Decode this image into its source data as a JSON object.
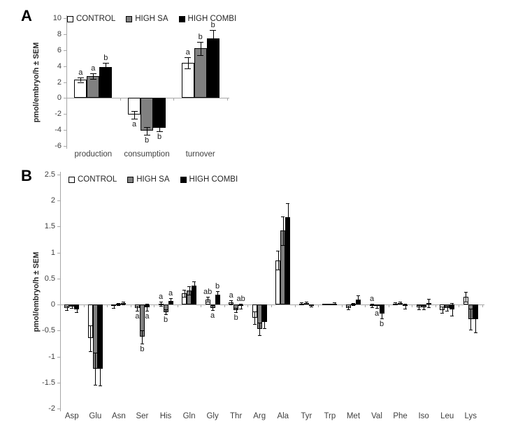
{
  "figure": {
    "background": "#ffffff",
    "series_colors": {
      "control": "#ffffff",
      "high_sa": "#808080",
      "high_combi": "#000000"
    }
  },
  "chart_data": [
    {
      "id": "panel_a",
      "panel_label": "A",
      "type": "bar",
      "title": "",
      "xlabel": "",
      "ylabel": "pmol/embryo/h ± SEM",
      "ylim": [
        -6,
        10
      ],
      "yticks": [
        10,
        8,
        6,
        4,
        2,
        0,
        -2,
        -4,
        -6
      ],
      "grid": false,
      "legend_position": "top-inside",
      "categories": [
        "production",
        "consumption",
        "turnover"
      ],
      "series": [
        {
          "name": "CONTROL",
          "fill": "#ffffff",
          "values": [
            2.3,
            -2.1,
            4.4
          ],
          "errors": [
            0.3,
            0.45,
            0.7
          ],
          "letters": [
            "a",
            "a",
            "a"
          ],
          "letter_pos": [
            "above",
            "below",
            "above"
          ]
        },
        {
          "name": "HIGH SA",
          "fill": "#808080",
          "values": [
            2.7,
            -4.1,
            6.2
          ],
          "errors": [
            0.35,
            0.5,
            0.8
          ],
          "letters": [
            "a",
            "b",
            "b"
          ],
          "letter_pos": [
            "above",
            "below",
            "above"
          ]
        },
        {
          "name": "HIGH COMBI",
          "fill": "#000000",
          "values": [
            3.9,
            -3.7,
            7.5
          ],
          "errors": [
            0.5,
            0.5,
            1.0
          ],
          "letters": [
            "b",
            "b",
            "b"
          ],
          "letter_pos": [
            "above",
            "below",
            "above"
          ]
        }
      ]
    },
    {
      "id": "panel_b",
      "panel_label": "B",
      "type": "bar",
      "title": "",
      "xlabel": "",
      "ylabel": "pmol/embryo/h ± SEM",
      "ylim": [
        -2,
        2.5
      ],
      "yticks": [
        2.5,
        2,
        1.5,
        1,
        0.5,
        0,
        -0.5,
        -1,
        -1.5,
        -2
      ],
      "grid": false,
      "legend_position": "top-inside",
      "categories": [
        "Asp",
        "Glu",
        "Asn",
        "Ser",
        "His",
        "Gln",
        "Gly",
        "Thr",
        "Arg",
        "Ala",
        "Tyr",
        "Trp",
        "Met",
        "Val",
        "Phe",
        "Iso",
        "Leu",
        "Lys"
      ],
      "series": [
        {
          "name": "CONTROL",
          "fill": "#ffffff",
          "values": [
            -0.07,
            -0.65,
            -0.03,
            -0.07,
            0.02,
            0.22,
            0.1,
            0.04,
            -0.25,
            0.85,
            0.02,
            0.01,
            -0.06,
            -0.02,
            0.02,
            -0.05,
            -0.1,
            0.15
          ],
          "errors": [
            0.04,
            0.25,
            0.03,
            0.05,
            0.04,
            0.07,
            0.05,
            0.04,
            0.12,
            0.18,
            0.02,
            0.01,
            0.03,
            0.03,
            0.02,
            0.04,
            0.06,
            0.1
          ],
          "letters": [
            "",
            "",
            "",
            "a",
            "a",
            "",
            "ab",
            "a",
            "",
            "",
            "",
            "",
            "",
            "a",
            "",
            "",
            "",
            ""
          ],
          "letter_pos": [
            "",
            "",
            "",
            "below",
            "above",
            "",
            "above",
            "above",
            "",
            "",
            "",
            "",
            "",
            "above",
            "",
            "",
            "",
            ""
          ]
        },
        {
          "name": "HIGH SA",
          "fill": "#808080",
          "values": [
            -0.04,
            -1.23,
            0.01,
            -0.62,
            -0.14,
            0.27,
            -0.06,
            -0.1,
            -0.47,
            1.42,
            0.03,
            0.01,
            0.01,
            -0.03,
            0.03,
            -0.05,
            -0.07,
            -0.28
          ],
          "errors": [
            0.03,
            0.31,
            0.02,
            0.13,
            0.05,
            0.08,
            0.05,
            0.04,
            0.12,
            0.28,
            0.02,
            0.01,
            0.02,
            0.03,
            0.02,
            0.04,
            0.05,
            0.2
          ],
          "letters": [
            "",
            "",
            "",
            "b",
            "b",
            "",
            "a",
            "b",
            "",
            "",
            "",
            "",
            "",
            "a",
            "",
            "",
            "",
            ""
          ],
          "letter_pos": [
            "",
            "",
            "",
            "below",
            "below",
            "",
            "below",
            "below",
            "",
            "",
            "",
            "",
            "",
            "below",
            "",
            "",
            "",
            ""
          ]
        },
        {
          "name": "HIGH COMBI",
          "fill": "#000000",
          "values": [
            -0.09,
            -1.23,
            0.03,
            -0.05,
            0.07,
            0.37,
            0.19,
            -0.03,
            -0.33,
            1.68,
            -0.02,
            0.02,
            0.09,
            -0.17,
            -0.03,
            0.03,
            -0.09,
            -0.28
          ],
          "errors": [
            0.06,
            0.33,
            0.03,
            0.07,
            0.05,
            0.08,
            0.07,
            0.05,
            0.12,
            0.27,
            0.02,
            0.02,
            0.08,
            0.1,
            0.05,
            0.08,
            0.12,
            0.25
          ],
          "letters": [
            "",
            "",
            "",
            "a",
            "a",
            "",
            "b",
            "ab",
            "",
            "",
            "",
            "",
            "",
            "b",
            "",
            "",
            "",
            ""
          ],
          "letter_pos": [
            "",
            "",
            "",
            "below",
            "above",
            "",
            "above",
            "above",
            "",
            "",
            "",
            "",
            "",
            "below",
            "",
            "",
            "",
            ""
          ]
        }
      ]
    }
  ]
}
